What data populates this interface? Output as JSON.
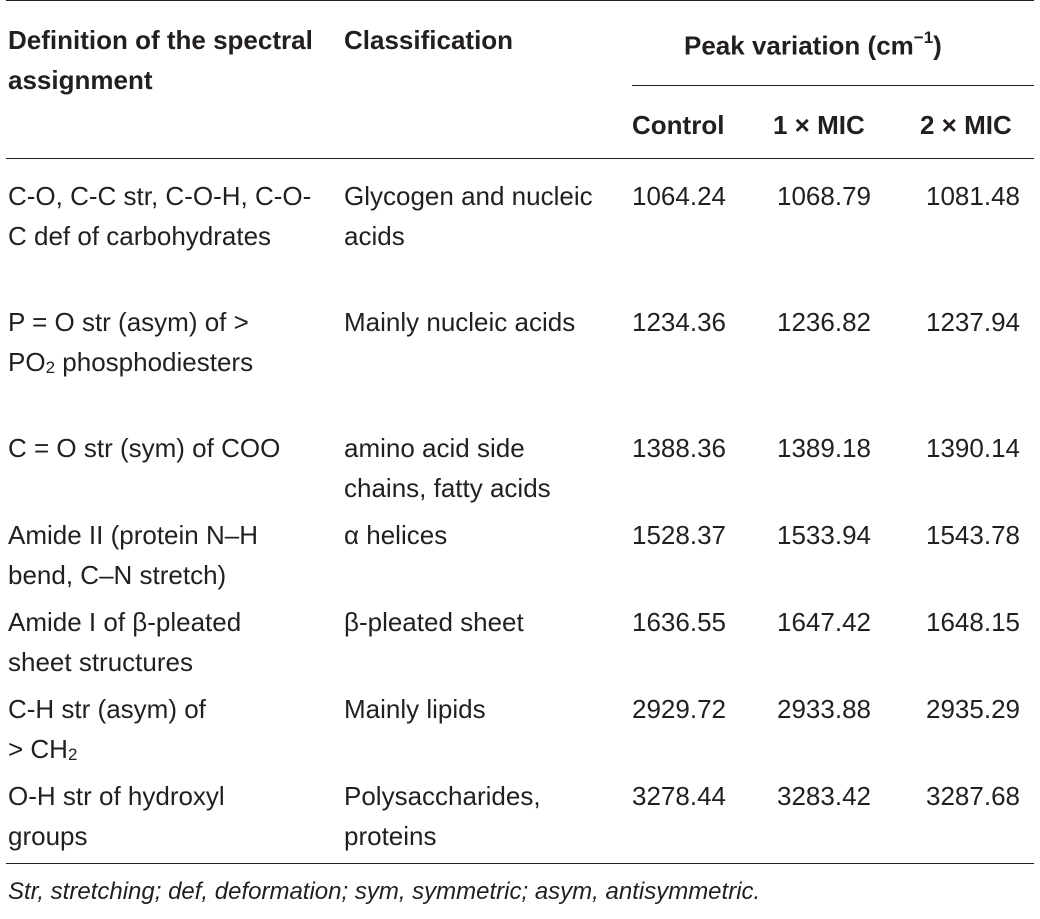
{
  "header": {
    "definition": "Definition of the spectral assignment",
    "classification": "Classification",
    "peak_variation": "Peak variation (cm",
    "peak_variation_sup": "−1",
    "peak_variation_close": ")",
    "col_control": "Control",
    "col_1mic": "1 × MIC",
    "col_2mic": "2 × MIC"
  },
  "rows": [
    {
      "def_a": "C-O, C-C str, C-O-H, C-O-C def of carbohydrates",
      "def_sub": "",
      "def_b": "",
      "cls": "Glycogen and nucleic acids",
      "control": "1064.24",
      "mic1": "1068.79",
      "mic2": "1081.48"
    },
    {
      "def_a": "P = O str (asym) of > PO",
      "def_sub": "2",
      "def_b": " phosphodiesters",
      "cls": "Mainly nucleic acids",
      "control": "1234.36",
      "mic1": "1236.82",
      "mic2": "1237.94"
    },
    {
      "def_a": "C = O str (sym) of COO",
      "def_sub": "",
      "def_b": "",
      "cls": "amino acid side chains, fatty acids",
      "control": "1388.36",
      "mic1": "1389.18",
      "mic2": "1390.14"
    },
    {
      "def_a": "Amide II (protein N–H bend, C–N stretch)",
      "def_sub": "",
      "def_b": "",
      "cls": "α helices",
      "control": "1528.37",
      "mic1": "1533.94",
      "mic2": "1543.78"
    },
    {
      "def_a": "Amide I of β-pleated sheet structures",
      "def_sub": "",
      "def_b": "",
      "cls": "β-pleated sheet",
      "control": "1636.55",
      "mic1": "1647.42",
      "mic2": "1648.15"
    },
    {
      "def_a": "C-H str (asym) of > CH",
      "def_sub": "2",
      "def_b": "",
      "cls": "Mainly lipids",
      "control": "2929.72",
      "mic1": "2933.88",
      "mic2": "2935.29"
    },
    {
      "def_a": "O-H str of hydroxyl groups",
      "def_sub": "",
      "def_b": "",
      "cls": "Polysaccharides, proteins",
      "control": "3278.44",
      "mic1": "3283.42",
      "mic2": "3287.68"
    }
  ],
  "footnote": "Str, stretching; def, deformation; sym, symmetric; asym, antisymmetric."
}
